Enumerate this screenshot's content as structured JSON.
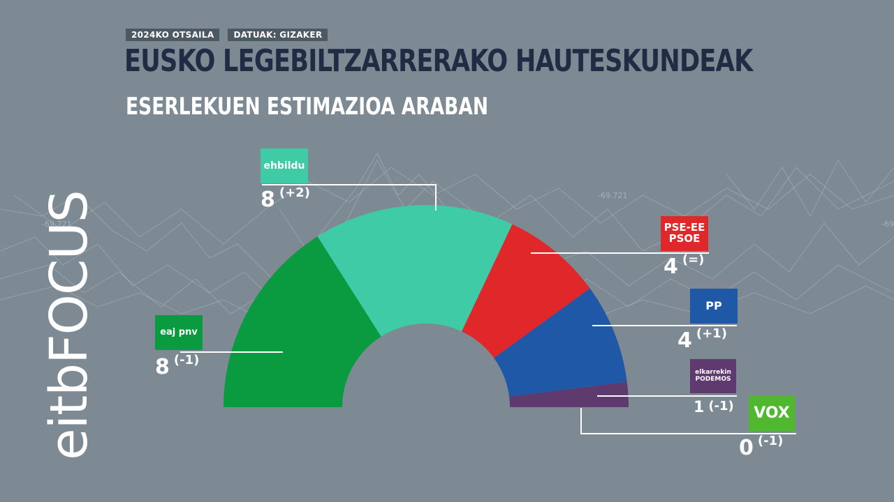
{
  "header": {
    "date_tag": "2024KO OTSAILA",
    "source_tag": "DATUAK: GIZAKER",
    "title": "EUSKO LEGEBILTZARRERAKO HAUTESKUNDEAK",
    "subtitle": "ESERLEKUEN ESTIMAZIOA ARABAN"
  },
  "brand": {
    "part1": "eitb",
    "part2": "FOCUS"
  },
  "background": {
    "label_1": "-69.721",
    "label_2": "-69.721",
    "label_3": "-69"
  },
  "colors": {
    "background": "#7d8a93",
    "title": "#1f2c44",
    "eaj_pnv": "#0a9a3f",
    "ehbildu": "#3ecba5",
    "pse_ee_psoe": "#e0282b",
    "pp": "#1f58a6",
    "podemos": "#5e3a6e",
    "vox": "#4fb82f"
  },
  "chart_data": {
    "type": "pie",
    "subtype": "parliament-semicircle",
    "total_seats": 25,
    "parties": [
      {
        "logo_text": "eaj pnv",
        "seats": 8,
        "change": "(-1)",
        "color": "#0a9a3f"
      },
      {
        "logo_text": "ehbildu",
        "seats": 8,
        "change": "(+2)",
        "color": "#3ecba5"
      },
      {
        "logo_text": "PSE-EE PSOE",
        "seats": 4,
        "change": "(=)",
        "color": "#e0282b"
      },
      {
        "logo_text": "PP",
        "seats": 4,
        "change": "(+1)",
        "color": "#1f58a6"
      },
      {
        "logo_text": "elkarrekin PODEMOS",
        "seats": 1,
        "change": "(-1)",
        "color": "#5e3a6e"
      },
      {
        "logo_text": "VOX",
        "seats": 0,
        "change": "(-1)",
        "color": "#4fb82f"
      }
    ]
  }
}
